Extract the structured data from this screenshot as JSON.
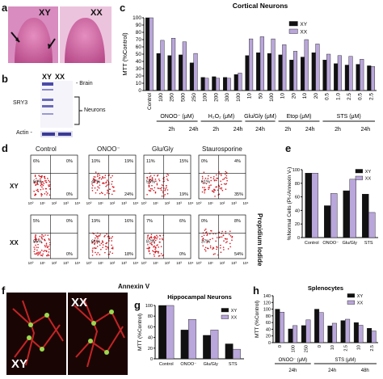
{
  "panel_letters": {
    "a": "a",
    "b": "b",
    "c": "c",
    "d": "d",
    "e": "e",
    "f": "f",
    "g": "g",
    "h": "h"
  },
  "panel_a": {
    "left_label": "XY",
    "right_label": "XX"
  },
  "panel_b": {
    "col1": "XY",
    "col2": "XX",
    "brain": "- Brain",
    "sry3": "SRY3",
    "neurons": "Neurons",
    "actin": "Actin -"
  },
  "panel_d": {
    "col_titles": [
      "Control",
      "ONOO⁻",
      "Glu/Gly",
      "Staurosporine"
    ],
    "row_labels": [
      "XY",
      "XX"
    ],
    "right_label": "Propidium Iodide",
    "x_axis_label": "Annexin V",
    "quadrants": [
      [
        "6%",
        "0%",
        "94%",
        "0%"
      ],
      [
        "10%",
        "19%",
        "47%",
        "24%"
      ],
      [
        "11%",
        "15%",
        "55%",
        "19%"
      ],
      [
        "0%",
        "4%",
        "61%",
        "35%"
      ],
      [
        "5%",
        "0%",
        "95%",
        "0%"
      ],
      [
        "19%",
        "16%",
        "61%",
        "18%"
      ],
      [
        "7%",
        "6%",
        "87%",
        "0%"
      ],
      [
        "0%",
        "8%",
        "37%",
        "54%"
      ]
    ],
    "tick_labels": [
      "10⁰",
      "10¹",
      "10²",
      "10³",
      "10⁴"
    ]
  },
  "panel_f": {
    "left_label": "XY",
    "right_label": "XX"
  },
  "chart_data": [
    {
      "id": "c",
      "type": "bar",
      "title": "Cortical Neurons",
      "ylabel": "MTT (%Control)",
      "ylim": [
        0,
        100
      ],
      "yticks": [
        0,
        10,
        20,
        30,
        40,
        50,
        60,
        70,
        80,
        90,
        100
      ],
      "legend": [
        "XY",
        "XX"
      ],
      "categories": [
        "Control",
        "100",
        "250",
        "500",
        "250",
        "100",
        "200",
        "300",
        "100",
        "10",
        "50",
        "100",
        "10",
        "20",
        "10",
        "20",
        "0.5",
        "1.0",
        "2.5",
        "0.5",
        "2.5"
      ],
      "series": [
        {
          "name": "XY",
          "values": [
            100,
            51,
            48,
            49,
            38,
            18,
            19,
            18,
            22,
            48,
            52,
            51,
            49,
            42,
            46,
            52,
            42,
            37,
            35,
            36,
            34
          ]
        },
        {
          "name": "XX",
          "values": [
            100,
            69,
            72,
            67,
            51,
            17,
            17,
            17,
            24,
            71,
            74,
            71,
            63,
            54,
            70,
            64,
            50,
            48,
            47,
            43,
            33
          ]
        }
      ],
      "group_labels": [
        {
          "text": "ONOO⁻ (μM)",
          "sub": [
            "2h",
            "24h"
          ]
        },
        {
          "text": "H₂O₂ (μM)",
          "sub": [
            "2h",
            "24h"
          ]
        },
        {
          "text": "Glu/Gly (μM)",
          "sub": [
            "24h"
          ]
        },
        {
          "text": "Etop (μM)",
          "sub": [
            "2h",
            "24h"
          ]
        },
        {
          "text": "STS (μM)",
          "sub": [
            "2h",
            "24h"
          ]
        }
      ]
    },
    {
      "id": "e",
      "type": "bar",
      "ylabel": "%Normal Cells (PI-/Annexin V-)",
      "ylim": [
        0,
        100
      ],
      "yticks": [
        0,
        20,
        40,
        60,
        80,
        100
      ],
      "legend": [
        "XY",
        "XX"
      ],
      "categories": [
        "Control",
        "ONOO⁻",
        "Glu/Gly",
        "STS"
      ],
      "series": [
        {
          "name": "XY",
          "values": [
            95,
            47,
            69,
            64
          ]
        },
        {
          "name": "XX",
          "values": [
            95,
            65,
            86,
            37
          ]
        }
      ]
    },
    {
      "id": "g",
      "type": "bar",
      "title": "Hippocampal Neurons",
      "ylabel": "MTT (%Control)",
      "ylim": [
        0,
        100
      ],
      "yticks": [
        0,
        20,
        40,
        60,
        80,
        100
      ],
      "legend": [
        "XY",
        "XX"
      ],
      "categories": [
        "Control",
        "ONOO⁻",
        "Glu/Gly",
        "STS"
      ],
      "series": [
        {
          "name": "XY",
          "values": [
            100,
            54,
            44,
            28
          ]
        },
        {
          "name": "XX",
          "values": [
            100,
            74,
            54,
            18
          ]
        }
      ]
    },
    {
      "id": "h",
      "type": "bar",
      "title": "Splenocytes",
      "ylabel": "MTT (%Control)",
      "ylim": [
        0,
        140
      ],
      "yticks": [
        0,
        20,
        40,
        60,
        80,
        100,
        120,
        140
      ],
      "legend": [
        "XY",
        "XX"
      ],
      "categories": [
        "0",
        "100",
        "250",
        "0",
        "10",
        "2.5",
        "10",
        "2.5"
      ],
      "series": [
        {
          "name": "XY",
          "values": [
            100,
            41,
            51,
            100,
            50,
            66,
            60,
            43
          ]
        },
        {
          "name": "XX",
          "values": [
            91,
            51,
            68,
            90,
            58,
            70,
            52,
            35
          ]
        }
      ],
      "group_labels": [
        {
          "text": "ONOO⁻ (μM)",
          "sub": [
            "24h"
          ]
        },
        {
          "text": "STS (μM)",
          "sub": [
            "24h",
            "48h"
          ]
        }
      ]
    }
  ]
}
